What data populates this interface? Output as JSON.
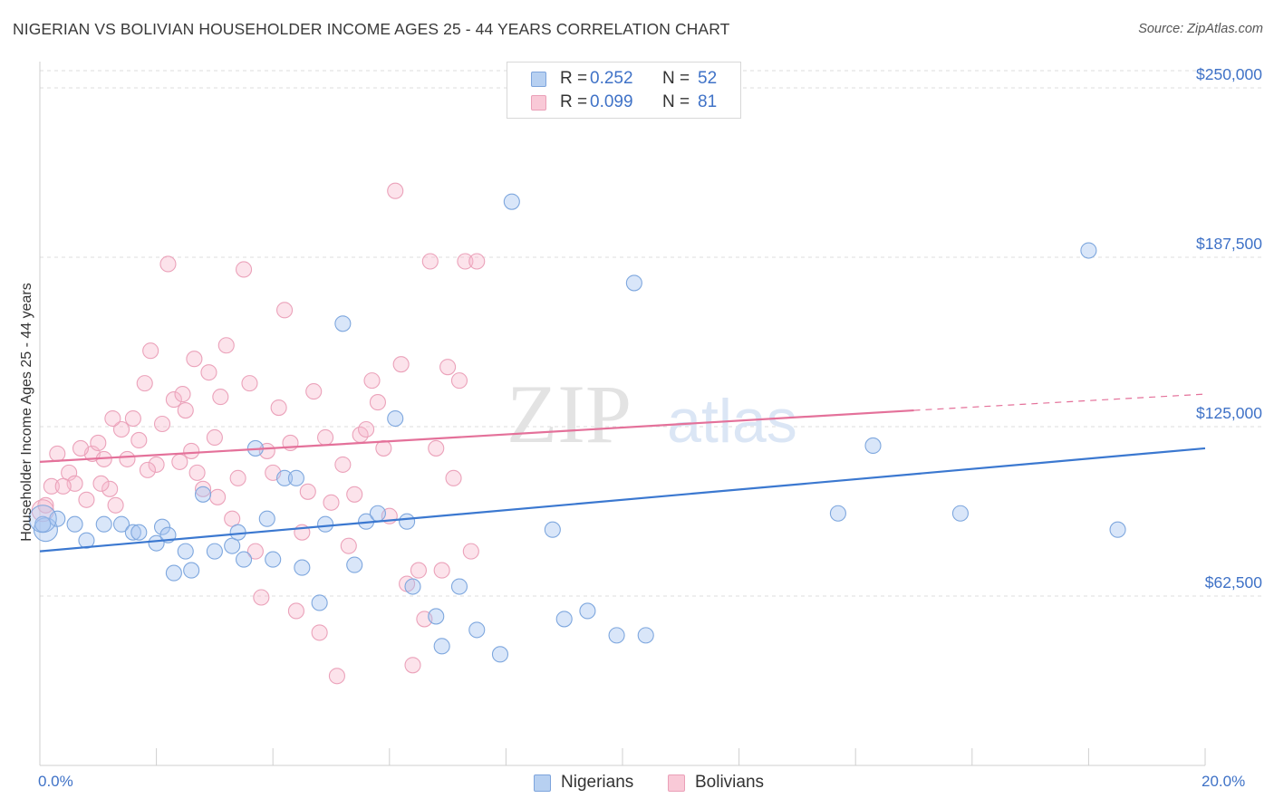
{
  "title": "NIGERIAN VS BOLIVIAN HOUSEHOLDER INCOME AGES 25 - 44 YEARS CORRELATION CHART",
  "source": "Source: ZipAtlas.com",
  "watermark": {
    "part1": "ZIP",
    "part2": "atlas"
  },
  "legend": {
    "rows": [
      {
        "r_label": "R = ",
        "r_value": "0.252",
        "n_label": "N = ",
        "n_value": "52"
      },
      {
        "r_label": "R = ",
        "r_value": "0.099",
        "n_label": "N = ",
        "n_value": "81"
      }
    ]
  },
  "colors": {
    "nigerians": "#3b78d0",
    "bolivians": "#e4719a",
    "tick_label": "#3f72c7"
  },
  "chart_data": {
    "type": "scatter",
    "title": "NIGERIAN VS BOLIVIAN HOUSEHOLDER INCOME AGES 25 - 44 YEARS CORRELATION CHART",
    "xlabel": "",
    "ylabel": "Householder Income Ages 25 - 44 years",
    "xlim": [
      0,
      20
    ],
    "ylim": [
      0,
      262000
    ],
    "x_tick_labels": [
      "0.0%",
      "20.0%"
    ],
    "y_ticks": [
      62500,
      125000,
      187500,
      250000
    ],
    "y_tick_labels": [
      "$62,500",
      "$125,000",
      "$187,500",
      "$250,000"
    ],
    "grid": true,
    "series": [
      {
        "name": "Nigerians",
        "color": "#3b78d0",
        "trend": {
          "x0": 0,
          "y0": 79000,
          "x1": 20,
          "y1": 117000
        },
        "points": [
          [
            0.1,
            87000
          ],
          [
            0.3,
            91000
          ],
          [
            0.6,
            89000
          ],
          [
            0.8,
            83000
          ],
          [
            1.1,
            89000
          ],
          [
            1.4,
            89000
          ],
          [
            1.6,
            86000
          ],
          [
            1.7,
            86000
          ],
          [
            2.0,
            82000
          ],
          [
            2.1,
            88000
          ],
          [
            2.2,
            85000
          ],
          [
            2.3,
            71000
          ],
          [
            2.5,
            79000
          ],
          [
            2.6,
            72000
          ],
          [
            2.8,
            100000
          ],
          [
            3.0,
            79000
          ],
          [
            3.3,
            81000
          ],
          [
            3.4,
            86000
          ],
          [
            3.5,
            76000
          ],
          [
            3.7,
            117000
          ],
          [
            3.9,
            91000
          ],
          [
            4.0,
            76000
          ],
          [
            4.2,
            106000
          ],
          [
            4.4,
            106000
          ],
          [
            4.5,
            73000
          ],
          [
            4.8,
            60000
          ],
          [
            4.9,
            89000
          ],
          [
            5.2,
            163000
          ],
          [
            5.4,
            74000
          ],
          [
            5.6,
            90000
          ],
          [
            5.8,
            93000
          ],
          [
            6.1,
            128000
          ],
          [
            6.3,
            90000
          ],
          [
            6.4,
            66000
          ],
          [
            6.8,
            55000
          ],
          [
            6.9,
            44000
          ],
          [
            7.2,
            66000
          ],
          [
            7.5,
            50000
          ],
          [
            7.9,
            41000
          ],
          [
            8.1,
            208000
          ],
          [
            8.8,
            87000
          ],
          [
            9.0,
            54000
          ],
          [
            9.4,
            57000
          ],
          [
            9.9,
            48000
          ],
          [
            10.2,
            178000
          ],
          [
            10.4,
            48000
          ],
          [
            13.7,
            93000
          ],
          [
            14.3,
            118000
          ],
          [
            15.8,
            93000
          ],
          [
            18.0,
            190000
          ],
          [
            18.5,
            87000
          ],
          [
            0.05,
            89000
          ]
        ]
      },
      {
        "name": "Bolivians",
        "color": "#e4719a",
        "trend": {
          "x0": 0,
          "y0": 112000,
          "x1": 15,
          "y1": 131000,
          "dash_x1": 20,
          "dash_y1": 137000
        },
        "points": [
          [
            0.1,
            96000
          ],
          [
            0.2,
            103000
          ],
          [
            0.3,
            115000
          ],
          [
            0.5,
            108000
          ],
          [
            0.6,
            104000
          ],
          [
            0.8,
            98000
          ],
          [
            0.9,
            115000
          ],
          [
            1.0,
            119000
          ],
          [
            1.1,
            113000
          ],
          [
            1.2,
            102000
          ],
          [
            1.3,
            96000
          ],
          [
            1.4,
            124000
          ],
          [
            1.5,
            113000
          ],
          [
            1.6,
            128000
          ],
          [
            1.7,
            120000
          ],
          [
            1.8,
            141000
          ],
          [
            1.9,
            153000
          ],
          [
            2.0,
            111000
          ],
          [
            2.1,
            126000
          ],
          [
            2.2,
            185000
          ],
          [
            2.3,
            135000
          ],
          [
            2.4,
            112000
          ],
          [
            2.5,
            131000
          ],
          [
            2.6,
            116000
          ],
          [
            2.7,
            108000
          ],
          [
            2.8,
            102000
          ],
          [
            2.9,
            145000
          ],
          [
            3.0,
            121000
          ],
          [
            3.1,
            136000
          ],
          [
            3.2,
            155000
          ],
          [
            3.3,
            91000
          ],
          [
            3.4,
            106000
          ],
          [
            3.5,
            183000
          ],
          [
            3.6,
            141000
          ],
          [
            3.7,
            79000
          ],
          [
            3.8,
            62000
          ],
          [
            3.9,
            116000
          ],
          [
            4.0,
            108000
          ],
          [
            4.1,
            132000
          ],
          [
            4.2,
            168000
          ],
          [
            4.3,
            119000
          ],
          [
            4.4,
            57000
          ],
          [
            4.5,
            86000
          ],
          [
            4.6,
            101000
          ],
          [
            4.7,
            138000
          ],
          [
            4.8,
            49000
          ],
          [
            4.9,
            121000
          ],
          [
            5.0,
            97000
          ],
          [
            5.1,
            33000
          ],
          [
            5.2,
            111000
          ],
          [
            5.3,
            81000
          ],
          [
            5.4,
            100000
          ],
          [
            5.5,
            122000
          ],
          [
            5.6,
            124000
          ],
          [
            5.7,
            142000
          ],
          [
            5.8,
            134000
          ],
          [
            5.9,
            117000
          ],
          [
            6.0,
            92000
          ],
          [
            6.1,
            212000
          ],
          [
            6.2,
            148000
          ],
          [
            6.3,
            67000
          ],
          [
            6.4,
            37000
          ],
          [
            6.5,
            72000
          ],
          [
            6.6,
            54000
          ],
          [
            6.7,
            186000
          ],
          [
            6.8,
            117000
          ],
          [
            6.9,
            72000
          ],
          [
            7.0,
            147000
          ],
          [
            7.1,
            106000
          ],
          [
            7.2,
            142000
          ],
          [
            7.3,
            186000
          ],
          [
            7.4,
            79000
          ],
          [
            7.5,
            186000
          ],
          [
            0.4,
            103000
          ],
          [
            0.7,
            117000
          ],
          [
            1.05,
            104000
          ],
          [
            1.25,
            128000
          ],
          [
            1.85,
            109000
          ],
          [
            2.45,
            137000
          ],
          [
            2.65,
            150000
          ],
          [
            3.05,
            99000
          ]
        ]
      }
    ]
  },
  "legend_bottom": {
    "items": [
      "Nigerians",
      "Bolivians"
    ]
  }
}
